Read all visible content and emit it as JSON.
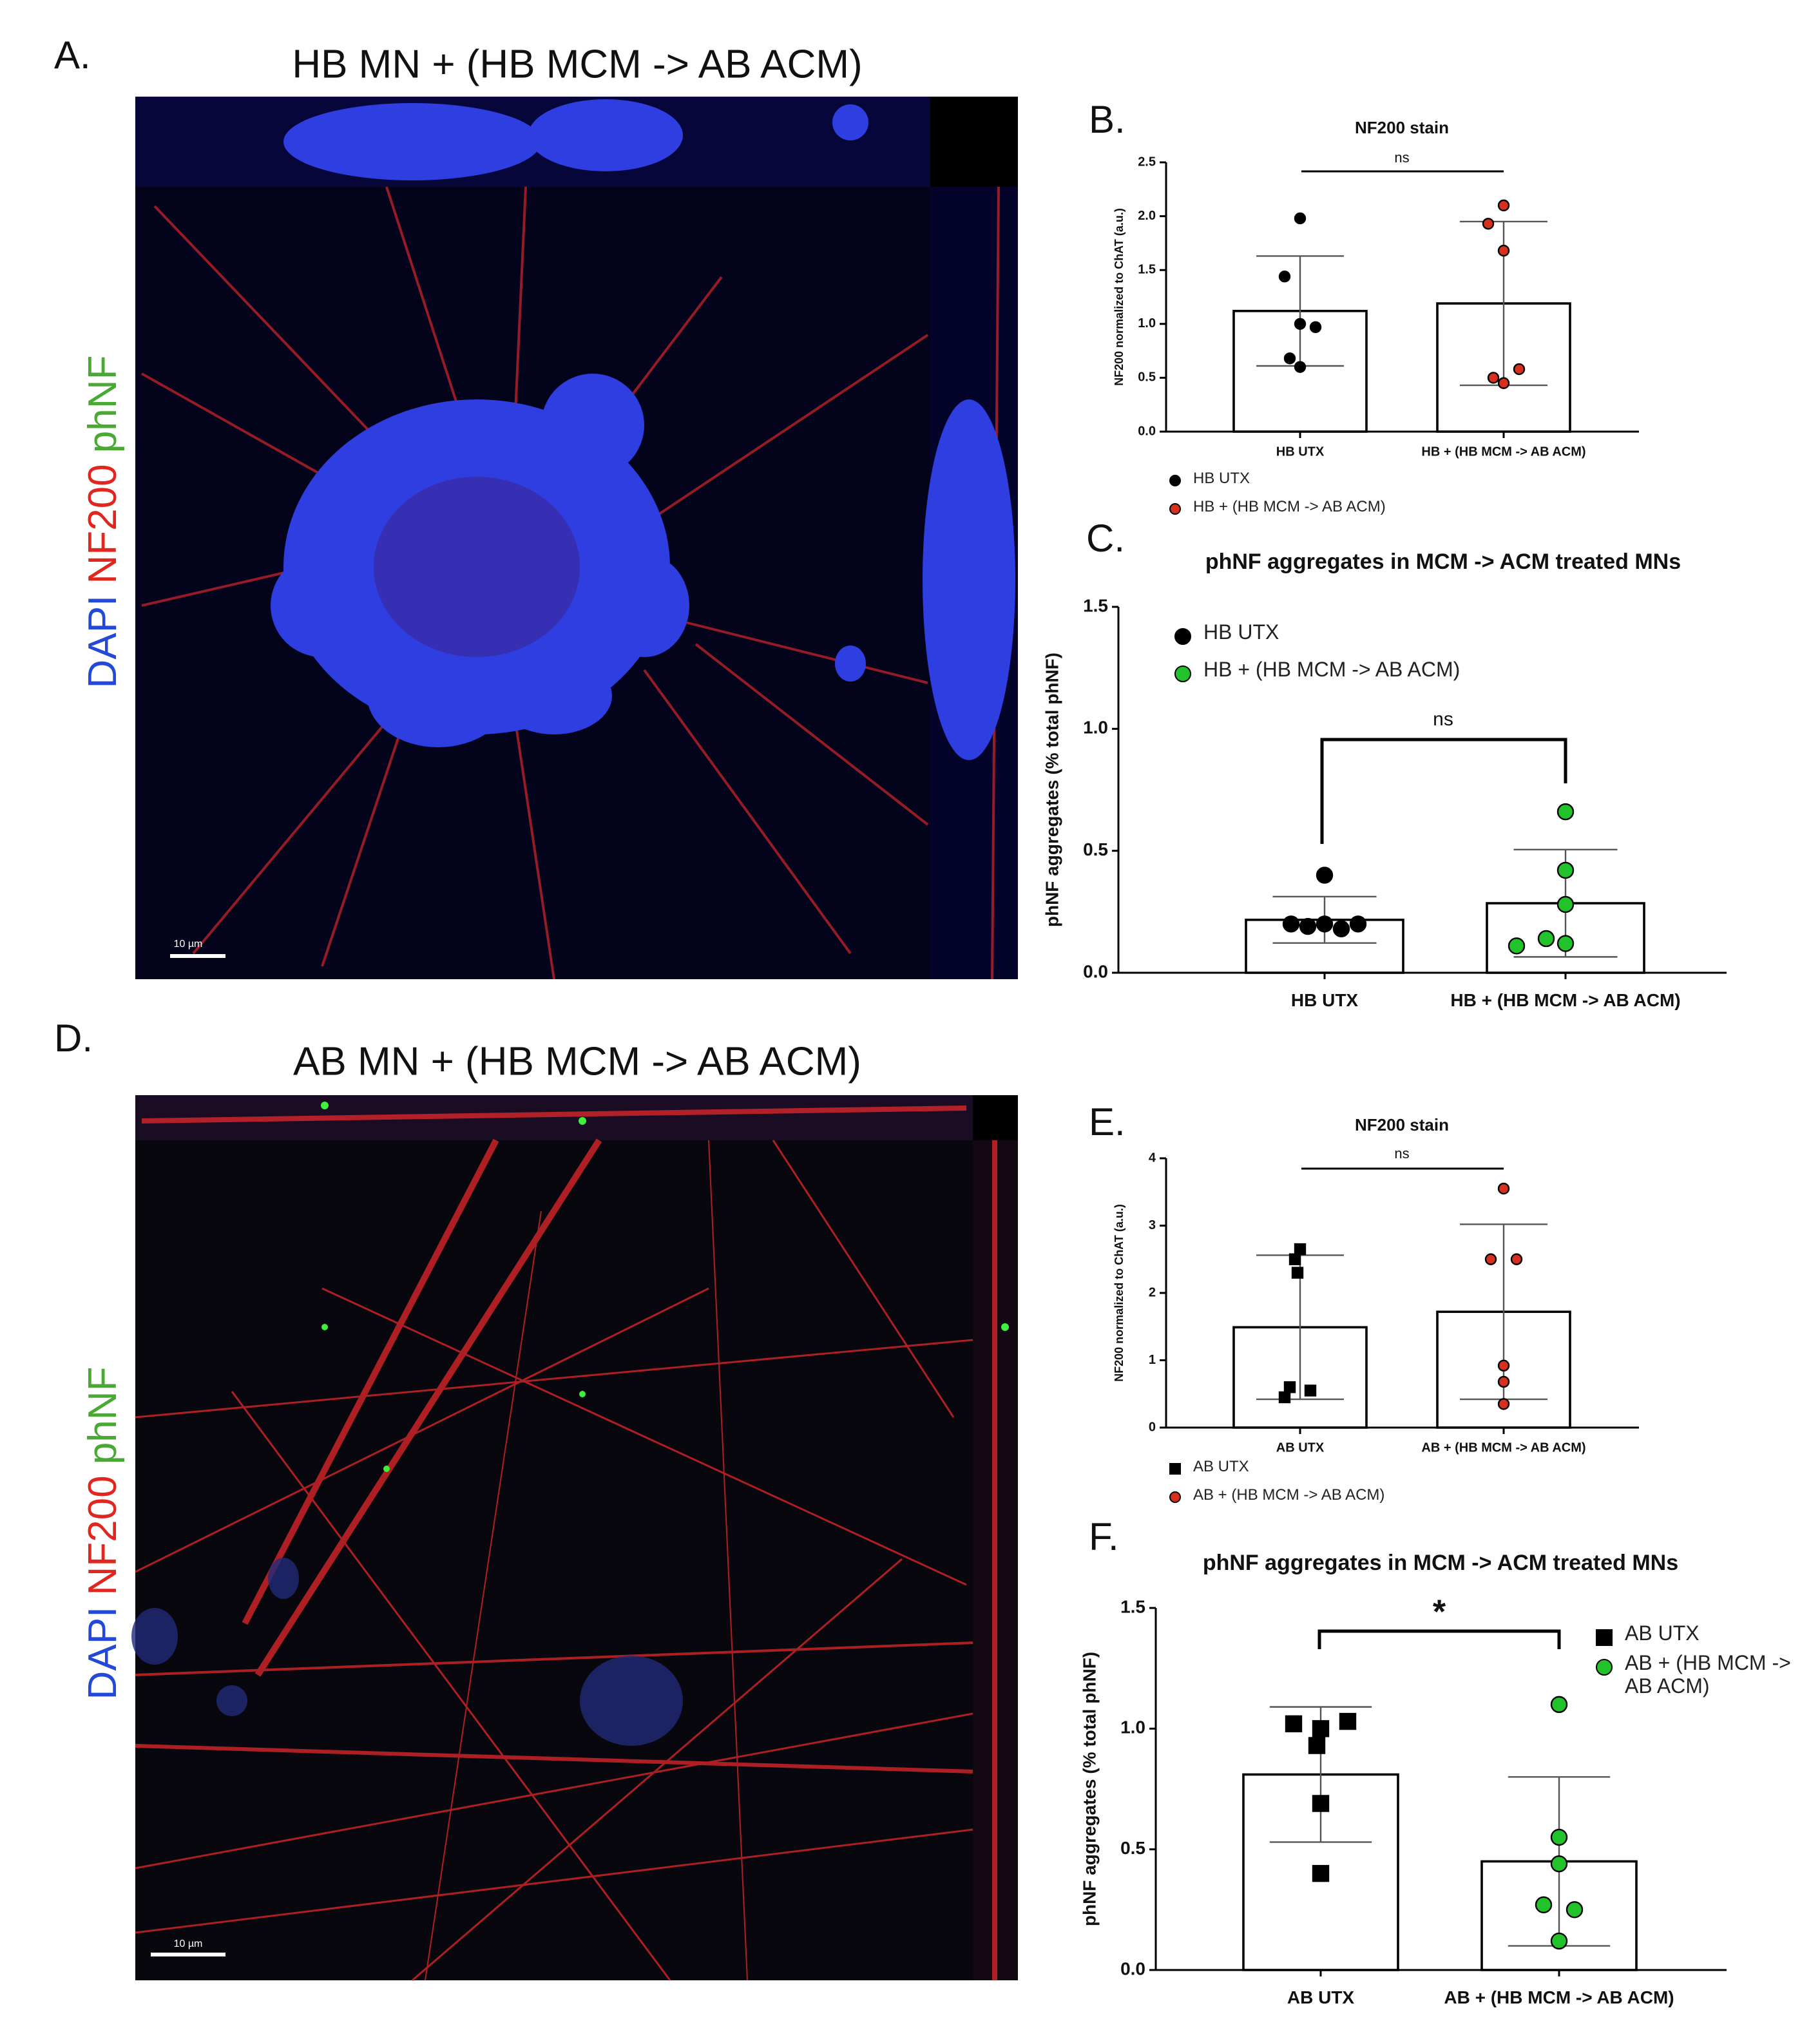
{
  "panels": [
    {
      "letter": "A.",
      "title": "HB MN + (HB MCM -> AB ACM)",
      "stains": [
        "DAPI",
        "NF200",
        "phNF"
      ],
      "scale_bar": "10 µm"
    },
    {
      "letter": "D.",
      "title": "AB MN + (HB MCM -> AB ACM)",
      "stains": [
        "DAPI",
        "NF200",
        "phNF"
      ],
      "scale_bar": "10 µm"
    }
  ],
  "chart_data": [
    {
      "type": "bar",
      "label": "B.",
      "title": "NF200 stain",
      "ylabel": "NF200 normalized to ChAT (a.u.)",
      "categories": [
        "HB UTX",
        "HB + (HB MCM -> AB ACM)"
      ],
      "series": [
        {
          "name": "HB UTX",
          "color": "#000000",
          "marker": "circle",
          "mean": 1.12,
          "sd": 0.51,
          "points": [
            1.98,
            1.44,
            1.0,
            0.97,
            0.68,
            0.6
          ]
        },
        {
          "name": "HB + (HB MCM -> AB ACM)",
          "color": "#d7301f",
          "marker": "circle",
          "mean": 1.19,
          "sd": 0.76,
          "points": [
            2.1,
            1.93,
            1.68,
            0.58,
            0.5,
            0.45
          ]
        }
      ],
      "ylim": [
        0,
        2.5
      ],
      "yticks": [
        {
          "value": 0,
          "label": "0.0"
        },
        {
          "value": 0.5,
          "label": "0.5"
        },
        {
          "value": 1,
          "label": "1.0"
        },
        {
          "value": 1.5,
          "label": "1.5"
        },
        {
          "value": 2,
          "label": "2.0"
        },
        {
          "value": 2.5,
          "label": "2.5"
        }
      ],
      "annotation": "ns"
    },
    {
      "type": "bar",
      "label": "C.",
      "title": "phNF aggregates in MCM -> ACM treated MNs",
      "ylabel": "phNF aggregates (% total phNF)",
      "categories": [
        "HB UTX",
        "HB + (HB MCM -> AB ACM)"
      ],
      "series": [
        {
          "name": "HB UTX",
          "color": "#000000",
          "marker": "circle",
          "mean": 0.217,
          "sd": 0.095,
          "points": [
            0.4,
            0.2,
            0.19,
            0.2,
            0.18,
            0.2
          ]
        },
        {
          "name": "HB + (HB MCM -> AB ACM)",
          "color": "#22c32a",
          "marker": "circle",
          "mean": 0.285,
          "sd": 0.22,
          "points": [
            0.66,
            0.42,
            0.28,
            0.14,
            0.12,
            0.11
          ]
        }
      ],
      "ylim": [
        0,
        1.5
      ],
      "yticks": [
        {
          "value": 0,
          "label": "0.0"
        },
        {
          "value": 0.5,
          "label": "0.5"
        },
        {
          "value": 1,
          "label": "1.0"
        },
        {
          "value": 1.5,
          "label": "1.5"
        }
      ],
      "annotation": "ns"
    },
    {
      "type": "bar",
      "label": "E.",
      "title": "NF200 stain",
      "ylabel": "NF200 normalized to ChAT (a.u.)",
      "categories": [
        "AB UTX",
        "AB + (HB MCM -> AB ACM)"
      ],
      "series": [
        {
          "name": "AB UTX",
          "color": "#000000",
          "marker": "square",
          "mean": 1.49,
          "sd": 1.07,
          "points": [
            2.65,
            2.5,
            2.3,
            0.6,
            0.55,
            0.45
          ]
        },
        {
          "name": "AB + (HB MCM -> AB ACM)",
          "color": "#d7301f",
          "marker": "circle",
          "mean": 1.72,
          "sd": 1.3,
          "points": [
            3.55,
            2.5,
            2.5,
            0.92,
            0.68,
            0.35
          ]
        }
      ],
      "ylim": [
        0,
        4
      ],
      "yticks": [
        0,
        1,
        2,
        3,
        4
      ],
      "annotation": "ns"
    },
    {
      "type": "bar",
      "label": "F.",
      "title": "phNF aggregates in MCM -> ACM treated MNs",
      "ylabel": "phNF aggregates (% total phNF)",
      "categories": [
        "AB UTX",
        "AB + (HB MCM -> AB ACM)"
      ],
      "series": [
        {
          "name": "AB UTX",
          "color": "#000000",
          "marker": "square",
          "mean": 0.81,
          "sd": 0.28,
          "points": [
            1.02,
            1.03,
            1.0,
            0.93,
            0.69,
            0.4
          ]
        },
        {
          "name": "AB + (HB MCM -> AB ACM)",
          "color": "#22c32a",
          "marker": "circle",
          "mean": 0.45,
          "sd": 0.35,
          "points": [
            1.1,
            0.55,
            0.44,
            0.27,
            0.25,
            0.12
          ]
        }
      ],
      "ylim": [
        0,
        1.5
      ],
      "yticks": [
        {
          "value": 0,
          "label": "0.0"
        },
        {
          "value": 0.5,
          "label": "0.5"
        },
        {
          "value": 1,
          "label": "1.0"
        },
        {
          "value": 1.5,
          "label": "1.5"
        }
      ],
      "annotation": "*"
    }
  ]
}
